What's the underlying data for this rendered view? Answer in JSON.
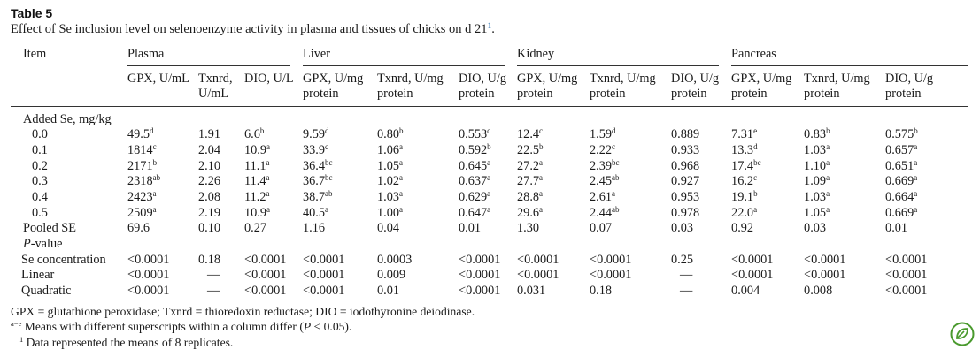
{
  "table_label": "Table 5",
  "caption": "Effect of Se inclusion level on selenoenzyme activity in plasma and tissues of chicks on d 21",
  "caption_note_ref": "1",
  "groups": [
    "Plasma",
    "Liver",
    "Kidney",
    "Pancreas"
  ],
  "item_header": "Item",
  "columns": [
    [
      "GPX, U/mL",
      ""
    ],
    [
      "Txnrd,",
      "U/mL"
    ],
    [
      "DIO, U/L",
      ""
    ],
    [
      "GPX, U/mg",
      "protein"
    ],
    [
      "Txnrd, U/mg",
      "protein"
    ],
    [
      "DIO, U/g",
      "protein"
    ],
    [
      "GPX, U/mg",
      "protein"
    ],
    [
      "Txnrd, U/mg",
      "protein"
    ],
    [
      "DIO, U/g",
      "protein"
    ],
    [
      "GPX, U/mg",
      "protein"
    ],
    [
      "Txnrd, U/mg",
      "protein"
    ],
    [
      "DIO, U/g",
      "protein"
    ]
  ],
  "section_added": "Added Se, mg/kg",
  "rows": [
    {
      "label": "0.0",
      "cells": [
        [
          "49.5",
          "d"
        ],
        [
          "1.91",
          ""
        ],
        [
          "6.6",
          "b"
        ],
        [
          "9.59",
          "d"
        ],
        [
          "0.80",
          "b"
        ],
        [
          "0.553",
          "c"
        ],
        [
          "12.4",
          "c"
        ],
        [
          "1.59",
          "d"
        ],
        [
          "0.889",
          ""
        ],
        [
          "7.31",
          "e"
        ],
        [
          "0.83",
          "b"
        ],
        [
          "0.575",
          "b"
        ]
      ]
    },
    {
      "label": "0.1",
      "cells": [
        [
          "1814",
          "c"
        ],
        [
          "2.04",
          ""
        ],
        [
          "10.9",
          "a"
        ],
        [
          "33.9",
          "c"
        ],
        [
          "1.06",
          "a"
        ],
        [
          "0.592",
          "b"
        ],
        [
          "22.5",
          "b"
        ],
        [
          "2.22",
          "c"
        ],
        [
          "0.933",
          ""
        ],
        [
          "13.3",
          "d"
        ],
        [
          "1.03",
          "a"
        ],
        [
          "0.657",
          "a"
        ]
      ]
    },
    {
      "label": "0.2",
      "cells": [
        [
          "2171",
          "b"
        ],
        [
          "2.10",
          ""
        ],
        [
          "11.1",
          "a"
        ],
        [
          "36.4",
          "bc"
        ],
        [
          "1.05",
          "a"
        ],
        [
          "0.645",
          "a"
        ],
        [
          "27.2",
          "a"
        ],
        [
          "2.39",
          "bc"
        ],
        [
          "0.968",
          ""
        ],
        [
          "17.4",
          "bc"
        ],
        [
          "1.10",
          "a"
        ],
        [
          "0.651",
          "a"
        ]
      ]
    },
    {
      "label": "0.3",
      "cells": [
        [
          "2318",
          "ab"
        ],
        [
          "2.26",
          ""
        ],
        [
          "11.4",
          "a"
        ],
        [
          "36.7",
          "bc"
        ],
        [
          "1.02",
          "a"
        ],
        [
          "0.637",
          "a"
        ],
        [
          "27.7",
          "a"
        ],
        [
          "2.45",
          "ab"
        ],
        [
          "0.927",
          ""
        ],
        [
          "16.2",
          "c"
        ],
        [
          "1.09",
          "a"
        ],
        [
          "0.669",
          "a"
        ]
      ]
    },
    {
      "label": "0.4",
      "cells": [
        [
          "2423",
          "a"
        ],
        [
          "2.08",
          ""
        ],
        [
          "11.2",
          "a"
        ],
        [
          "38.7",
          "ab"
        ],
        [
          "1.03",
          "a"
        ],
        [
          "0.629",
          "a"
        ],
        [
          "28.8",
          "a"
        ],
        [
          "2.61",
          "a"
        ],
        [
          "0.953",
          ""
        ],
        [
          "19.1",
          "b"
        ],
        [
          "1.03",
          "a"
        ],
        [
          "0.664",
          "a"
        ]
      ]
    },
    {
      "label": "0.5",
      "cells": [
        [
          "2509",
          "a"
        ],
        [
          "2.19",
          ""
        ],
        [
          "10.9",
          "a"
        ],
        [
          "40.5",
          "a"
        ],
        [
          "1.00",
          "a"
        ],
        [
          "0.647",
          "a"
        ],
        [
          "29.6",
          "a"
        ],
        [
          "2.44",
          "ab"
        ],
        [
          "0.978",
          ""
        ],
        [
          "22.0",
          "a"
        ],
        [
          "1.05",
          "a"
        ],
        [
          "0.669",
          "a"
        ]
      ]
    }
  ],
  "pooled_se": {
    "label": "Pooled SE",
    "cells": [
      "69.6",
      "0.10",
      "0.27",
      "1.16",
      "0.04",
      "0.01",
      "1.30",
      "0.07",
      "0.03",
      "0.92",
      "0.03",
      "0.01"
    ]
  },
  "pvalue_label_italic": "P",
  "pvalue_label_rest": "-value",
  "pvalue_rows": [
    {
      "label": "Se concentration",
      "cells": [
        "<0.0001",
        "0.18",
        "<0.0001",
        "<0.0001",
        "0.0003",
        "<0.0001",
        "<0.0001",
        "<0.0001",
        "0.25",
        "<0.0001",
        "<0.0001",
        "<0.0001"
      ]
    },
    {
      "label": "Linear",
      "cells": [
        "<0.0001",
        "—",
        "<0.0001",
        "<0.0001",
        "0.009",
        "<0.0001",
        "<0.0001",
        "<0.0001",
        "—",
        "<0.0001",
        "<0.0001",
        "<0.0001"
      ]
    },
    {
      "label": "Quadratic",
      "cells": [
        "<0.0001",
        "—",
        "<0.0001",
        "<0.0001",
        "0.01",
        "<0.0001",
        "0.031",
        "0.18",
        "—",
        "0.004",
        "0.008",
        "<0.0001"
      ]
    }
  ],
  "footnotes": {
    "abbrev": "GPX = glutathione peroxidase; Txnrd = thioredoxin reductase; DIO = iodothyronine deiodinase.",
    "sup_mark": "a−e",
    "means_pre": " Means with different superscripts within a column differ (",
    "means_p": "P",
    "means_post": " < 0.05).",
    "note1_mark": "1",
    "note1_text": "Data represented the means of 8 replicates."
  },
  "badge_icon": "leaf-badge-icon",
  "colors": {
    "badge": "#4a9a2e",
    "link": "#2a6fb0"
  }
}
